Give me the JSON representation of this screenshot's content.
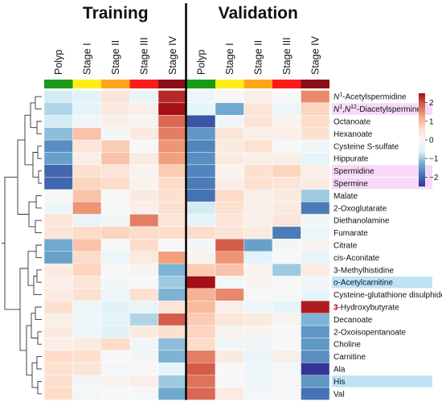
{
  "chart_data": {
    "type": "heatmap",
    "groups": [
      {
        "name": "Training",
        "columns": [
          "Polyp",
          "Stage I",
          "Stage II",
          "Stage III",
          "Stage IV"
        ]
      },
      {
        "name": "Validation",
        "columns": [
          "Polyp",
          "Stage I",
          "Stage II",
          "Stage III",
          "Stage IV"
        ]
      }
    ],
    "column_colors": [
      "#1a9a1a",
      "#ffee1a",
      "#ffa51a",
      "#ff1a1a",
      "#8b0d15",
      "#1a9a1a",
      "#ffee1a",
      "#ffa51a",
      "#ff1a1a",
      "#8b0d15"
    ],
    "rows": [
      {
        "label": "N1-Acetylspermidine",
        "base": "N",
        "sup1": "1",
        "rest": "-Acetylspermidine",
        "highlight": ""
      },
      {
        "label": "N1,N12-Diacetylspermine",
        "base": "N",
        "sup1": "1",
        "mid": ",N",
        "sup2": "12",
        "rest": "-Diacetylspermine",
        "highlight": "#f7d9f7"
      },
      {
        "label": "Octanoate",
        "highlight": ""
      },
      {
        "label": "Hexanoate",
        "highlight": ""
      },
      {
        "label": "Cysteine S-sulfate",
        "highlight": ""
      },
      {
        "label": "Hippurate",
        "highlight": ""
      },
      {
        "label": "Spermidine",
        "highlight": "#f7d9f7",
        "color": "#8a3a8a"
      },
      {
        "label": "Spermine",
        "highlight": "#f7d9f7",
        "color": "#8a3a8a"
      },
      {
        "label": "Malate",
        "highlight": ""
      },
      {
        "label": "2-Oxoglutarate",
        "highlight": ""
      },
      {
        "label": "Diethanolamine",
        "highlight": ""
      },
      {
        "label": "Fumarate",
        "highlight": ""
      },
      {
        "label": "Citrate",
        "highlight": ""
      },
      {
        "label": "cis-Aconitate",
        "highlight": ""
      },
      {
        "label": "3-Methylhistidine",
        "highlight": ""
      },
      {
        "label": "o-Acetylcarnitine",
        "highlight": "#bfe3f5",
        "color": "#2a5a8a"
      },
      {
        "label": "Cysteine-glutathione disulphide",
        "highlight": ""
      },
      {
        "label": "3-Hydroxybutyrate",
        "first": "3",
        "rest": "-Hydroxybutyrate",
        "first_color": "#cc0000",
        "highlight": ""
      },
      {
        "label": "Decanoate",
        "highlight": ""
      },
      {
        "label": "2-Oxoisopentanoate",
        "highlight": ""
      },
      {
        "label": "Choline",
        "highlight": ""
      },
      {
        "label": "Carnitine",
        "highlight": ""
      },
      {
        "label": "Ala",
        "highlight": ""
      },
      {
        "label": "His",
        "highlight": "#bfe3f5",
        "color": "#2a5a8a"
      },
      {
        "label": "Val",
        "highlight": ""
      }
    ],
    "values": [
      [
        -0.7,
        -0.6,
        0.4,
        -0.4,
        2.3,
        -0.3,
        0.0,
        0.2,
        0.0,
        1.5
      ],
      [
        -0.9,
        -0.5,
        0.3,
        0.2,
        2.5,
        -0.5,
        -1.3,
        0.4,
        -0.3,
        0.7
      ],
      [
        -0.7,
        -0.2,
        0.2,
        0.1,
        1.8,
        -2.2,
        -0.2,
        0.4,
        0.1,
        0.6
      ],
      [
        -1.1,
        0.9,
        -0.1,
        0.3,
        1.6,
        -1.5,
        0.4,
        0.2,
        0.2,
        0.5
      ],
      [
        -1.6,
        0.4,
        0.8,
        0.0,
        1.4,
        -1.7,
        0.3,
        0.5,
        0.0,
        -0.2
      ],
      [
        -1.4,
        0.2,
        0.9,
        0.3,
        1.3,
        -1.6,
        0.3,
        0.2,
        0.2,
        -0.5
      ],
      [
        -2.0,
        0.5,
        0.4,
        0.1,
        0.8,
        -1.7,
        0.1,
        0.5,
        0.7,
        0.2
      ],
      [
        -2.0,
        0.7,
        0.6,
        0.1,
        0.6,
        -1.8,
        0.2,
        0.5,
        0.4,
        0.3
      ],
      [
        0.0,
        0.9,
        0.0,
        0.3,
        0.5,
        -1.9,
        0.6,
        0.2,
        0.3,
        -1.0
      ],
      [
        -0.3,
        1.4,
        0.0,
        0.2,
        0.5,
        -0.7,
        0.5,
        0.2,
        0.3,
        -1.8
      ],
      [
        0.4,
        -0.4,
        -0.2,
        1.6,
        0.4,
        -0.5,
        0.4,
        0.2,
        0.4,
        -0.1
      ],
      [
        0.4,
        0.6,
        0.7,
        0.6,
        0.6,
        0.6,
        0.4,
        0.3,
        -1.8,
        -0.3
      ],
      [
        -1.3,
        0.9,
        0.0,
        0.6,
        0.0,
        -0.1,
        1.9,
        -1.4,
        -0.1,
        0.1
      ],
      [
        -1.4,
        0.6,
        -0.3,
        0.3,
        1.3,
        0.1,
        1.4,
        -0.6,
        0.0,
        -0.4
      ],
      [
        0.3,
        0.7,
        0.0,
        0.1,
        -1.2,
        0.8,
        0.9,
        0.1,
        -1.0,
        0.3
      ],
      [
        0.2,
        0.4,
        -0.1,
        0.0,
        -1.0,
        2.5,
        -0.1,
        0.1,
        0.0,
        -0.2
      ],
      [
        0.3,
        0.5,
        -0.3,
        0.5,
        -1.2,
        1.1,
        1.5,
        0.0,
        0.0,
        -0.5
      ],
      [
        0.5,
        -0.3,
        -0.6,
        -0.4,
        0.4,
        1.0,
        0.2,
        -0.3,
        -0.5,
        2.4
      ],
      [
        0.2,
        -0.2,
        -0.5,
        -0.9,
        1.9,
        0.8,
        0.4,
        0.3,
        0.1,
        -1.2
      ],
      [
        0.3,
        -0.3,
        -0.6,
        0.3,
        0.5,
        0.7,
        0.1,
        0.1,
        0.0,
        -1.5
      ],
      [
        0.2,
        0.3,
        0.6,
        -0.2,
        -1.1,
        0.6,
        -0.2,
        -0.2,
        0.0,
        -1.5
      ],
      [
        0.6,
        0.5,
        0.0,
        -0.1,
        -1.2,
        1.6,
        0.3,
        -0.4,
        0.2,
        -1.6
      ],
      [
        0.5,
        0.4,
        -0.1,
        0.0,
        -0.5,
        1.9,
        0.0,
        -0.3,
        -0.1,
        -2.6
      ],
      [
        0.5,
        -0.1,
        0.1,
        0.2,
        -1.0,
        1.7,
        0.0,
        -0.3,
        0.0,
        -1.5
      ],
      [
        0.6,
        -0.1,
        0.0,
        0.0,
        -1.3,
        1.8,
        0.3,
        -0.1,
        0.0,
        -1.9
      ]
    ],
    "color_scale": {
      "min": -2.5,
      "max": 2.5,
      "colors": [
        "#313695",
        "#4575b4",
        "#74add1",
        "#e0f3f8",
        "#f7f7f7",
        "#fddbc7",
        "#f4a582",
        "#d6604d",
        "#a50f15"
      ]
    },
    "legend": {
      "ticks": [
        2,
        1,
        0,
        -1,
        -2
      ],
      "placement": "top-right"
    },
    "row_dendrogram": true
  }
}
